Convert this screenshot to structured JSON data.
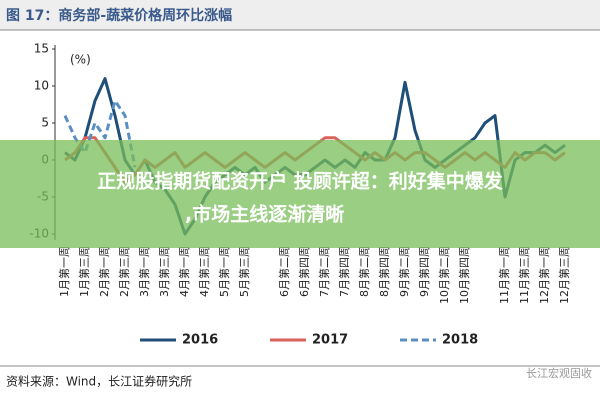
{
  "chart_data": {
    "type": "line",
    "title": "图 17：商务部-蔬菜价格周环比涨幅",
    "y_label": "(%)",
    "categories": [
      "1月第一周",
      null,
      "1月第三周",
      null,
      "2月第一周",
      null,
      "2月第三周",
      null,
      "3月第一周",
      null,
      "3月第三周",
      null,
      "4月第一周",
      null,
      "4月第三周",
      null,
      "5月第一周",
      null,
      "5月第三周",
      null,
      null,
      null,
      "6月第二周",
      null,
      "6月第四周",
      null,
      "7月第二周",
      null,
      "7月第四周",
      null,
      "8月第二周",
      null,
      "8月第四周",
      null,
      "9月第二周",
      null,
      "9月第四周",
      null,
      "10月第二周",
      null,
      "10月第四周",
      null,
      null,
      null,
      "11月第一周",
      null,
      "11月第三周",
      null,
      "12月第一周",
      null,
      "12月第三周"
    ],
    "series": [
      {
        "name": "2016",
        "color": "#1f4e79",
        "dashed": false,
        "values": [
          1,
          0,
          3,
          8,
          11,
          6,
          0,
          -2,
          0,
          -3,
          -4,
          -6,
          -10,
          -8,
          -5,
          -3,
          -2,
          -1,
          -2,
          -1,
          -3,
          -2,
          -1,
          -2,
          -2,
          -1,
          0,
          -1,
          0,
          -1,
          1,
          0,
          0,
          3,
          10.5,
          4,
          0,
          -1,
          0,
          1,
          2,
          3,
          5,
          6,
          -5,
          0,
          1,
          1,
          2,
          1,
          2
        ]
      },
      {
        "name": "2017",
        "color": "#d9625a",
        "dashed": false,
        "values": [
          0,
          1,
          3,
          3,
          1,
          -1,
          -3,
          -2,
          0,
          -1,
          0,
          1,
          -1,
          0,
          1,
          0,
          -1,
          0,
          1,
          0,
          -1,
          0,
          1,
          0,
          1,
          2,
          3,
          3,
          2,
          1,
          0,
          1,
          0,
          1,
          0,
          1,
          1,
          0,
          -1,
          0,
          1,
          0,
          1,
          0,
          -1,
          1,
          0,
          1,
          1,
          0,
          1
        ]
      },
      {
        "name": "2018",
        "color": "#5b8fc4",
        "dashed": true,
        "values": [
          6,
          3,
          1,
          5,
          3,
          8,
          6,
          -1,
          null,
          null,
          null,
          null,
          null,
          null,
          null,
          null,
          null,
          null,
          null,
          null,
          null,
          null,
          null,
          null,
          null,
          null,
          null,
          null,
          null,
          null,
          null,
          null,
          null,
          null,
          null,
          null,
          null,
          null,
          null,
          null,
          null,
          null,
          null,
          null,
          null,
          null,
          null,
          null,
          null,
          null,
          null
        ]
      }
    ],
    "ylim": [
      -10,
      15
    ],
    "yticks": [
      15,
      10,
      5,
      0,
      -5,
      -10
    ]
  },
  "overlay_text": [
    "正规股指期货配资开户 投顾许超：利好集中爆发",
    ",市场主线逐渐清晰"
  ],
  "source": "资料来源：Wind，长江证券研究所",
  "watermark": "长江宏观固收"
}
